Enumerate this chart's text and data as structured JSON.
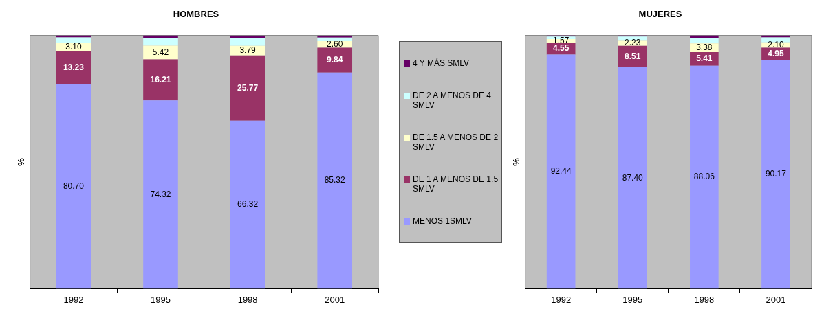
{
  "chart_data": [
    {
      "type": "bar",
      "title": "HOMBRES",
      "ylabel": "%",
      "categories": [
        "1992",
        "1995",
        "1998",
        "2001"
      ],
      "stacked": true,
      "ylim": [
        0,
        100
      ],
      "tick_labels": "x",
      "grid": false,
      "legend": "right",
      "series": [
        {
          "name": "MENOS 1SMLV",
          "color": "#9999ff",
          "values": [
            80.7,
            74.32,
            66.32,
            85.32
          ],
          "value_labels": [
            "80.70",
            "74.32",
            "66.32",
            "85.32"
          ]
        },
        {
          "name": "DE 1 A MENOS DE 1.5 SMLV",
          "color": "#993366",
          "values": [
            13.23,
            16.21,
            25.77,
            9.84
          ],
          "value_labels": [
            "13.23",
            "16.21",
            "25.77",
            "9.84"
          ]
        },
        {
          "name": "DE 1.5 A MENOS DE 2 SMLV",
          "color": "#ffffcc",
          "values": [
            3.1,
            5.42,
            3.79,
            2.6
          ],
          "value_labels": [
            "3.10",
            "5.42",
            "3.79",
            "2.60"
          ]
        },
        {
          "name": "DE 2 A MENOS DE 4 SMLV",
          "color": "#ccffff",
          "values": [
            2.2,
            2.85,
            3.1,
            1.4
          ],
          "value_labels": [
            null,
            null,
            null,
            null
          ]
        },
        {
          "name": "4 Y MÁS SMLV",
          "color": "#660066",
          "values": [
            0.8,
            1.2,
            1.0,
            0.8
          ],
          "value_labels": [
            null,
            null,
            null,
            null
          ]
        }
      ]
    },
    {
      "type": "bar",
      "title": "MUJERES",
      "ylabel": "%",
      "categories": [
        "1992",
        "1995",
        "1998",
        "2001"
      ],
      "stacked": true,
      "ylim": [
        0,
        100
      ],
      "tick_labels": "x",
      "grid": false,
      "series": [
        {
          "color": "#9999ff",
          "values": [
            92.44,
            87.4,
            88.06,
            90.17
          ],
          "value_labels": [
            "92.44",
            "87.40",
            "88.06",
            "90.17"
          ]
        },
        {
          "color": "#993366",
          "values": [
            4.55,
            8.51,
            5.41,
            4.95
          ],
          "value_labels": [
            "4.55",
            "8.51",
            "5.41",
            "4.95"
          ]
        },
        {
          "color": "#ffffcc",
          "values": [
            1.57,
            2.23,
            3.38,
            2.1
          ],
          "value_labels": [
            "1.57",
            "2.23",
            "3.38",
            "2.10"
          ]
        },
        {
          "color": "#ccffff",
          "values": [
            1.0,
            1.4,
            2.0,
            2.0
          ],
          "value_labels": [
            null,
            null,
            null,
            null
          ]
        },
        {
          "color": "#660066",
          "values": [
            0.44,
            0.46,
            1.15,
            0.78
          ],
          "value_labels": [
            null,
            null,
            null,
            null
          ]
        }
      ]
    }
  ]
}
